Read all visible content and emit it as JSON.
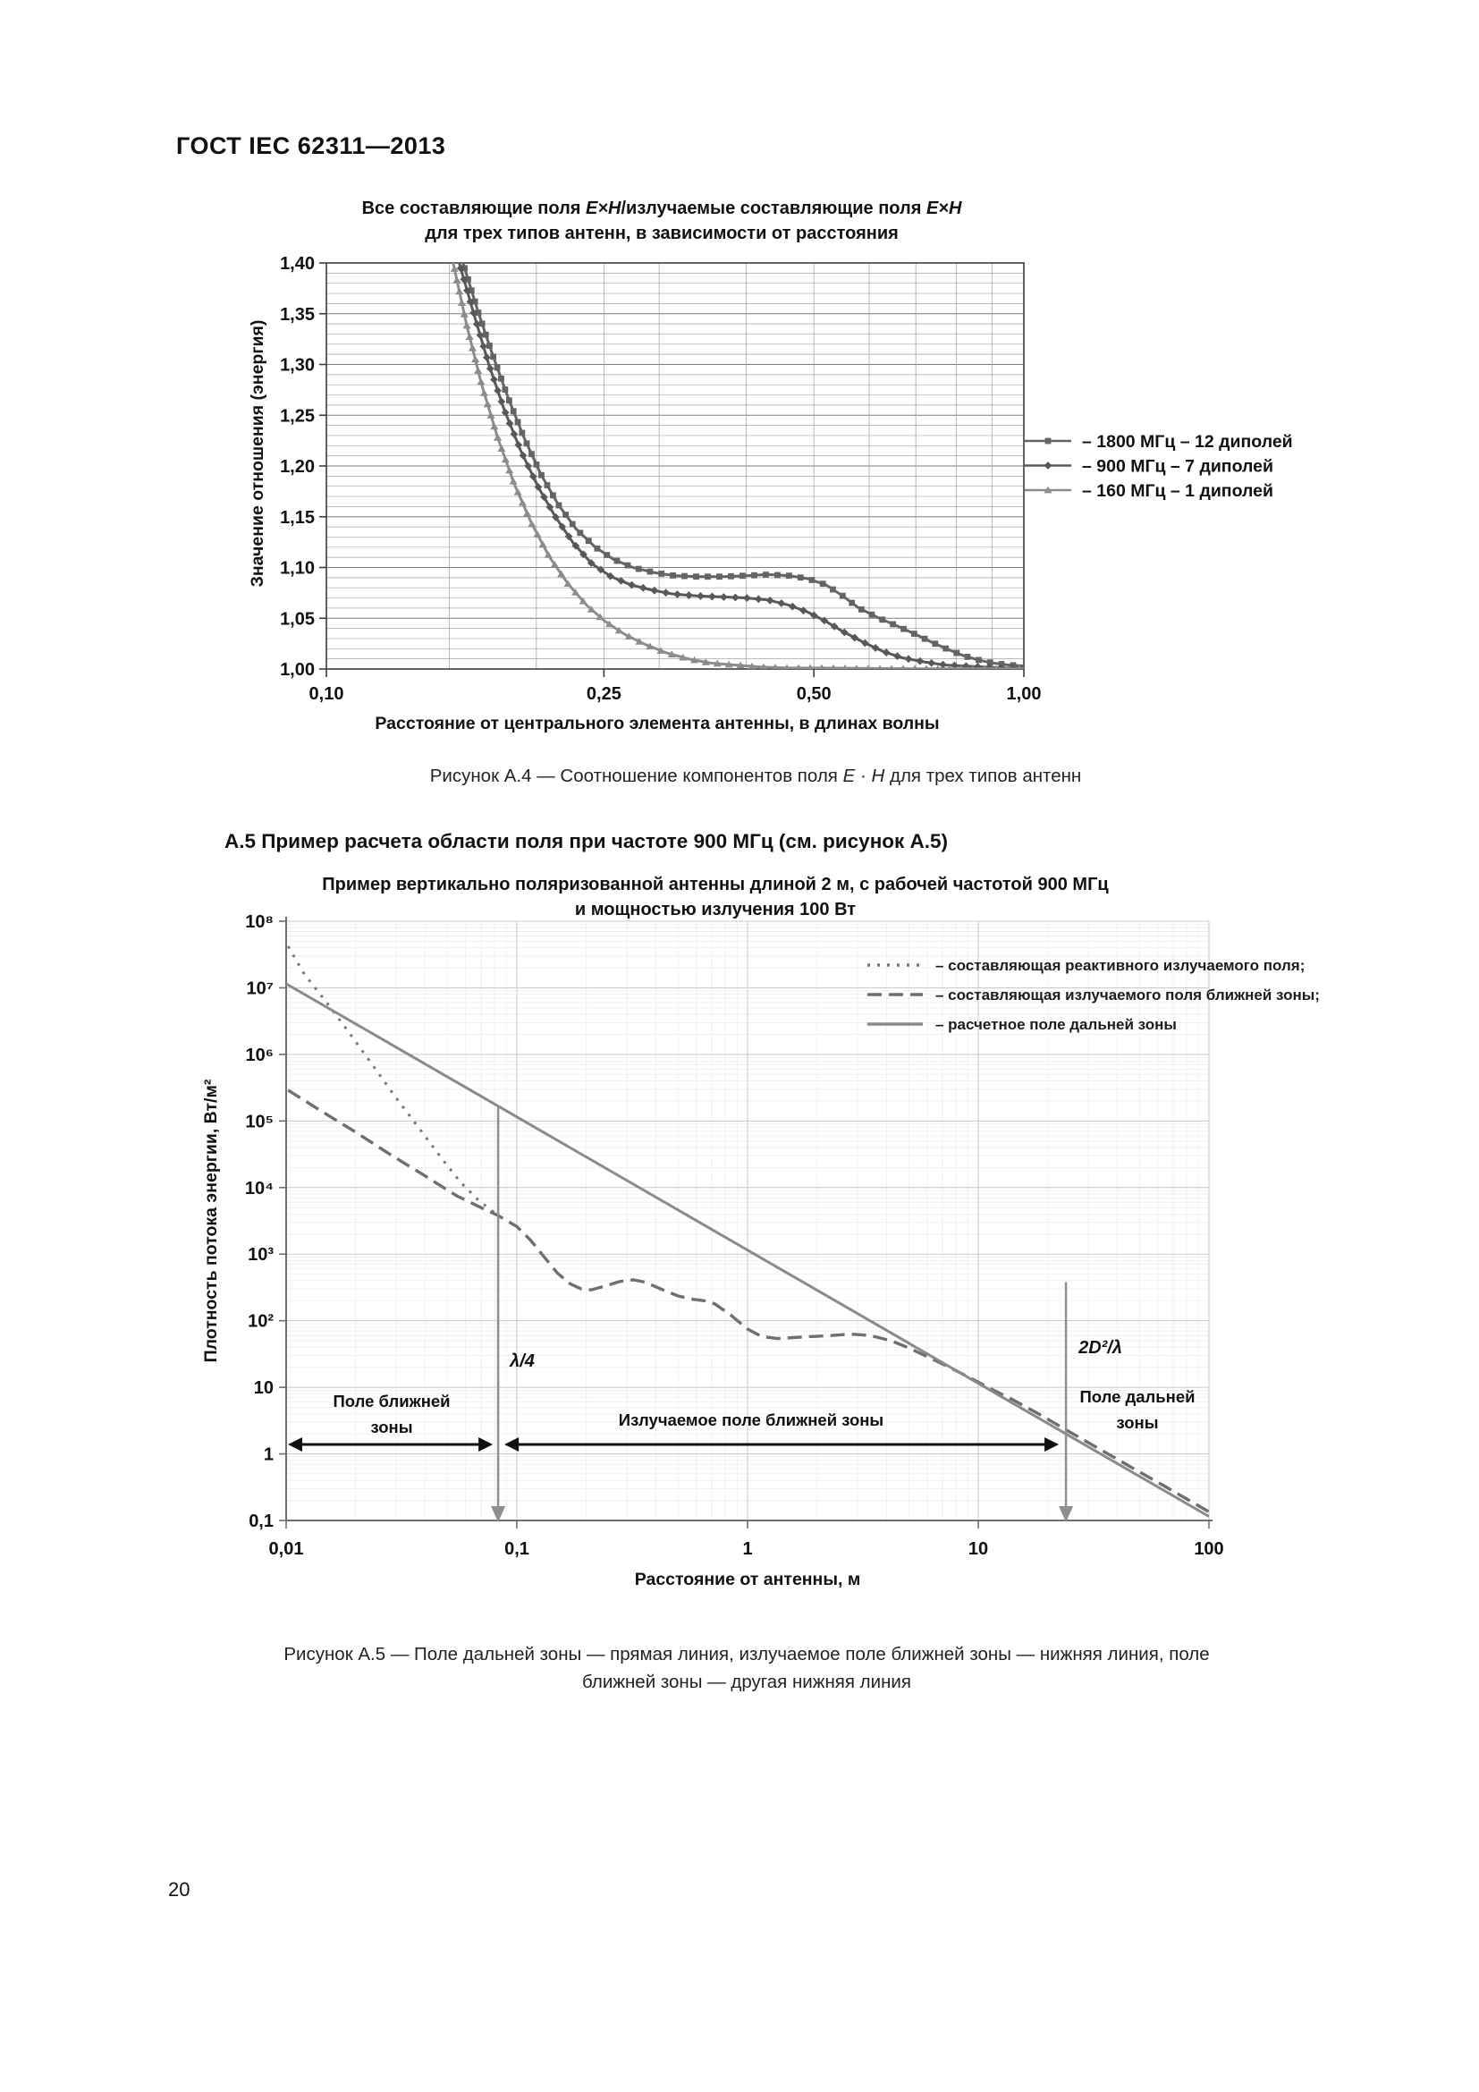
{
  "page": {
    "header": "ГОСТ IEC 62311—2013",
    "page_number": "20",
    "section_heading": "А.5 Пример расчета области поля при частоте 900 МГц (см. рисунок А.5)",
    "figure_a4_caption": {
      "prefix": "Рисунок А.4 — Соотношение компонентов поля ",
      "formula": "E · H",
      "suffix": " для трех типов антенн"
    },
    "figure_a5_caption_line1": "Рисунок А.5 — Поле дальней зоны — прямая линия, излучаемое поле ближней зоны — нижняя линия, поле",
    "figure_a5_caption_line2": "ближней зоны — другая нижняя линия"
  },
  "chart_data": [
    {
      "type": "line",
      "title_parts": [
        "Все составляющие поля ",
        "E×H",
        "/излучаемые составляющие поля ",
        "E×H"
      ],
      "title_line2": "для трех типов антенн, в зависимости от расстояния",
      "xlabel": "Расстояние от центрального элемента антенны, в длинах волны",
      "ylabel": "Значение отношения (энергия)",
      "x_scale": "log",
      "x_range": [
        0.1,
        1.0
      ],
      "y_range": [
        1.0,
        1.4
      ],
      "grid": true,
      "legend_position": "right",
      "legend_prefix": "– ",
      "x_ticks": [
        [
          0.1,
          "0,10"
        ],
        [
          0.25,
          "0,25"
        ],
        [
          0.5,
          "0,50"
        ],
        [
          1.0,
          "1,00"
        ]
      ],
      "x_minor_grid": [
        0.15,
        0.2,
        0.25,
        0.3,
        0.4,
        0.5,
        0.6,
        0.7,
        0.8,
        0.9
      ],
      "y_ticks": [
        [
          1.4,
          "1,40"
        ],
        [
          1.35,
          "1,35"
        ],
        [
          1.3,
          "1,30"
        ],
        [
          1.25,
          "1,25"
        ],
        [
          1.2,
          "1,20"
        ],
        [
          1.15,
          "1,15"
        ],
        [
          1.1,
          "1,10"
        ],
        [
          1.05,
          "1,05"
        ],
        [
          1.0,
          "1,00"
        ]
      ],
      "y_minor_step": 0.01,
      "series": [
        {
          "id": "1800",
          "name": "1800 МГц – 12 диполей",
          "marker": "square",
          "color": "#646464",
          "points": [
            [
              0.15,
              1.45
            ],
            [
              0.157,
              1.4
            ],
            [
              0.165,
              1.352
            ],
            [
              0.173,
              1.31
            ],
            [
              0.182,
              1.268
            ],
            [
              0.192,
              1.228
            ],
            [
              0.203,
              1.192
            ],
            [
              0.215,
              1.162
            ],
            [
              0.228,
              1.138
            ],
            [
              0.243,
              1.12
            ],
            [
              0.258,
              1.108
            ],
            [
              0.275,
              1.1
            ],
            [
              0.295,
              1.095
            ],
            [
              0.315,
              1.092
            ],
            [
              0.34,
              1.091
            ],
            [
              0.37,
              1.091
            ],
            [
              0.4,
              1.092
            ],
            [
              0.43,
              1.093
            ],
            [
              0.46,
              1.092
            ],
            [
              0.49,
              1.089
            ],
            [
              0.52,
              1.083
            ],
            [
              0.55,
              1.072
            ],
            [
              0.58,
              1.06
            ],
            [
              0.62,
              1.05
            ],
            [
              0.66,
              1.042
            ],
            [
              0.7,
              1.034
            ],
            [
              0.74,
              1.026
            ],
            [
              0.78,
              1.019
            ],
            [
              0.82,
              1.013
            ],
            [
              0.86,
              1.009
            ],
            [
              0.9,
              1.006
            ],
            [
              0.95,
              1.004
            ],
            [
              1.0,
              1.003
            ]
          ]
        },
        {
          "id": "900",
          "name": "900 МГц – 7 диполей",
          "marker": "diamond",
          "color": "#585858",
          "points": [
            [
              0.148,
              1.45
            ],
            [
              0.155,
              1.4
            ],
            [
              0.163,
              1.348
            ],
            [
              0.171,
              1.3
            ],
            [
              0.18,
              1.255
            ],
            [
              0.19,
              1.215
            ],
            [
              0.201,
              1.18
            ],
            [
              0.213,
              1.15
            ],
            [
              0.226,
              1.124
            ],
            [
              0.24,
              1.104
            ],
            [
              0.256,
              1.091
            ],
            [
              0.273,
              1.083
            ],
            [
              0.292,
              1.078
            ],
            [
              0.313,
              1.074
            ],
            [
              0.34,
              1.072
            ],
            [
              0.37,
              1.071
            ],
            [
              0.4,
              1.07
            ],
            [
              0.43,
              1.068
            ],
            [
              0.46,
              1.063
            ],
            [
              0.49,
              1.056
            ],
            [
              0.52,
              1.047
            ],
            [
              0.55,
              1.037
            ],
            [
              0.59,
              1.026
            ],
            [
              0.63,
              1.017
            ],
            [
              0.67,
              1.011
            ],
            [
              0.72,
              1.007
            ],
            [
              0.77,
              1.004
            ],
            [
              0.82,
              1.003
            ],
            [
              0.88,
              1.002
            ],
            [
              0.94,
              1.001
            ],
            [
              1.0,
              1.001
            ]
          ]
        },
        {
          "id": "160",
          "name": "160 МГц – 1 диполей",
          "marker": "triangle",
          "color": "#8c8c8c",
          "points": [
            [
              0.146,
              1.45
            ],
            [
              0.152,
              1.4
            ],
            [
              0.159,
              1.338
            ],
            [
              0.167,
              1.28
            ],
            [
              0.176,
              1.228
            ],
            [
              0.186,
              1.182
            ],
            [
              0.197,
              1.143
            ],
            [
              0.209,
              1.11
            ],
            [
              0.222,
              1.084
            ],
            [
              0.236,
              1.063
            ],
            [
              0.251,
              1.047
            ],
            [
              0.268,
              1.034
            ],
            [
              0.287,
              1.024
            ],
            [
              0.307,
              1.016
            ],
            [
              0.33,
              1.01
            ],
            [
              0.355,
              1.006
            ],
            [
              0.385,
              1.004
            ],
            [
              0.42,
              1.002
            ],
            [
              0.46,
              1.001
            ],
            [
              0.52,
              1.001
            ],
            [
              0.6,
              1.0005
            ],
            [
              0.7,
              1.0003
            ],
            [
              0.82,
              1.0002
            ],
            [
              1.0,
              1.0001
            ]
          ]
        }
      ]
    },
    {
      "type": "line",
      "title_line1": "Пример вертикально поляризованной антенны длиной 2 м, с рабочей частотой 900 МГц",
      "title_line2": "и мощностью излучения 100 Вт",
      "xlabel": "Расстояние от антенны, м",
      "ylabel": "Плотность потока энергии, Вт/м²",
      "x_scale": "log",
      "y_scale": "log",
      "x_range": [
        0.01,
        100
      ],
      "y_range": [
        0.1,
        100000000
      ],
      "grid": true,
      "legend_position": "top-right-inside",
      "legend_prefix": "– ",
      "x_ticks": [
        [
          0.01,
          "0,01"
        ],
        [
          0.1,
          "0,1"
        ],
        [
          1,
          "1"
        ],
        [
          10,
          "10"
        ],
        [
          100,
          "100"
        ]
      ],
      "y_ticks": [
        [
          100000000,
          "10⁸"
        ],
        [
          10000000,
          "10⁷"
        ],
        [
          1000000,
          "10⁶"
        ],
        [
          100000,
          "10⁵"
        ],
        [
          10000,
          "10⁴"
        ],
        [
          1000,
          "10³"
        ],
        [
          100,
          "10²"
        ],
        [
          10,
          "10"
        ],
        [
          1,
          "1"
        ],
        [
          0.1,
          "0,1"
        ]
      ],
      "series": [
        {
          "id": "reactive",
          "name": "составляющая реактивного излучаемого поля;",
          "style": "dotted",
          "color": "#787878",
          "points": [
            [
              0.0102,
              42000000
            ],
            [
              0.012,
              16000000
            ],
            [
              0.015,
              6000000
            ],
            [
              0.019,
              2000000
            ],
            [
              0.024,
              650000
            ],
            [
              0.03,
              220000
            ],
            [
              0.038,
              75000
            ],
            [
              0.047,
              28000
            ],
            [
              0.057,
              12000
            ],
            [
              0.068,
              6500
            ],
            [
              0.08,
              4200
            ]
          ]
        },
        {
          "id": "near_field",
          "name": "составляющая излучаемого поля ближней зоны;",
          "style": "dashed",
          "color": "#6f6f6f",
          "points": [
            [
              0.0102,
              290000
            ],
            [
              0.014,
              145000
            ],
            [
              0.02,
              68000
            ],
            [
              0.028,
              32000
            ],
            [
              0.04,
              15000
            ],
            [
              0.055,
              7500
            ],
            [
              0.07,
              5000
            ],
            [
              0.083,
              3800
            ],
            [
              0.1,
              2600
            ],
            [
              0.115,
              1600
            ],
            [
              0.13,
              950
            ],
            [
              0.15,
              520
            ],
            [
              0.17,
              360
            ],
            [
              0.19,
              300
            ],
            [
              0.21,
              290
            ],
            [
              0.24,
              330
            ],
            [
              0.28,
              390
            ],
            [
              0.32,
              410
            ],
            [
              0.36,
              380
            ],
            [
              0.42,
              300
            ],
            [
              0.5,
              235
            ],
            [
              0.58,
              210
            ],
            [
              0.65,
              200
            ],
            [
              0.72,
              180
            ],
            [
              0.85,
              120
            ],
            [
              1.0,
              75
            ],
            [
              1.15,
              58
            ],
            [
              1.35,
              54
            ],
            [
              1.6,
              56
            ],
            [
              1.9,
              58
            ],
            [
              2.3,
              60
            ],
            [
              2.8,
              63
            ],
            [
              3.4,
              60
            ],
            [
              4.2,
              50
            ],
            [
              5.0,
              39
            ],
            [
              6.0,
              29
            ],
            [
              7.5,
              20
            ],
            [
              9.0,
              14.5
            ],
            [
              11,
              10
            ],
            [
              14,
              6.6
            ],
            [
              18,
              4.1
            ],
            [
              24,
              2.3
            ],
            [
              32,
              1.3
            ],
            [
              45,
              0.66
            ],
            [
              65,
              0.32
            ],
            [
              100,
              0.135
            ]
          ]
        },
        {
          "id": "far_field",
          "name": "расчетное поле дальней зоны",
          "style": "solid",
          "color": "#8a8a8a",
          "points": [
            [
              0.01,
              11500000
            ],
            [
              100,
              0.115
            ]
          ]
        }
      ],
      "annotations": {
        "lambda_line": {
          "x": 0.083,
          "y_top": 160000,
          "label": "λ/4"
        },
        "far_line": {
          "x": 24,
          "y_top": 380,
          "label": "2D²/λ"
        },
        "zone_near": {
          "line1": "Поле ближней",
          "line2": "зоны"
        },
        "zone_radiating": {
          "line1": "Излучаемое поле ближней зоны"
        },
        "zone_far": {
          "line1": "Поле дальней",
          "line2": "зоны"
        }
      }
    }
  ]
}
